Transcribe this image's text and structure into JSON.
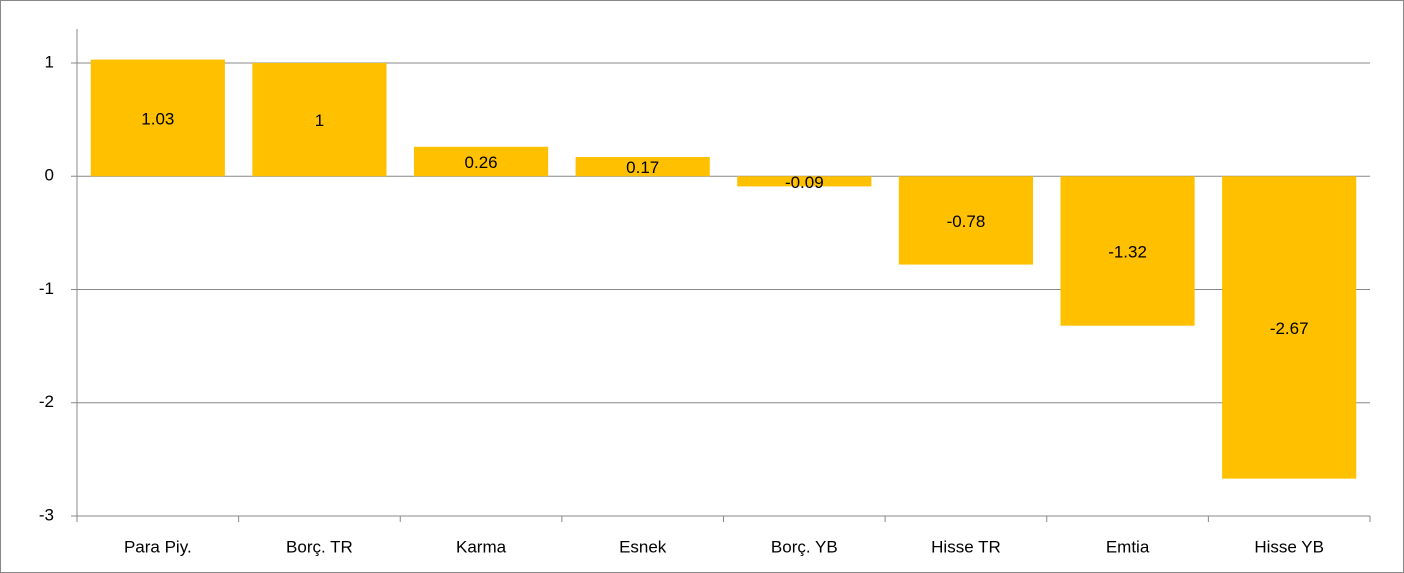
{
  "chart_data": {
    "type": "bar",
    "categories": [
      "Para Piy.",
      "Borç. TR",
      "Karma",
      "Esnek",
      "Borç. YB",
      "Hisse TR",
      "Emtia",
      "Hisse YB"
    ],
    "values": [
      1.03,
      1,
      0.26,
      0.17,
      -0.09,
      -0.78,
      -1.32,
      -2.67
    ],
    "color": "#ffc000",
    "ylim": [
      -3,
      1.3
    ],
    "yticks": [
      -3,
      -2,
      -1,
      0,
      1
    ],
    "grid": true
  }
}
